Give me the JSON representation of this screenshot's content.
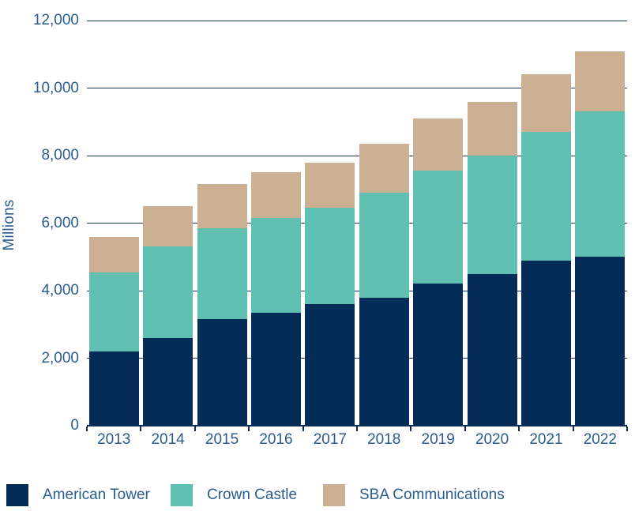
{
  "chart_data": {
    "type": "bar",
    "stacked": true,
    "title": "",
    "ylabel": "Millions",
    "xlabel": "",
    "ylim": [
      0,
      12000
    ],
    "grid": true,
    "legend_position": "bottom",
    "yticks": [
      0,
      2000,
      4000,
      6000,
      8000,
      10000,
      12000
    ],
    "ytick_labels": [
      "0",
      "2,000",
      "4,000",
      "6,000",
      "8,000",
      "10,000",
      "12,000"
    ],
    "categories": [
      "2013",
      "2014",
      "2015",
      "2016",
      "2017",
      "2018",
      "2019",
      "2020",
      "2021",
      "2022"
    ],
    "series": [
      {
        "name": "American Tower",
        "color": "#052b57",
        "values": [
          2200,
          2600,
          3150,
          3350,
          3600,
          3800,
          4200,
          4500,
          4900,
          5000
        ]
      },
      {
        "name": "Crown Castle",
        "color": "#5fc0b2",
        "values": [
          2350,
          2700,
          2700,
          2800,
          2850,
          3100,
          3350,
          3500,
          3800,
          4300
        ]
      },
      {
        "name": "SBA Communications",
        "color": "#cbb094",
        "values": [
          1050,
          1200,
          1300,
          1350,
          1350,
          1450,
          1550,
          1600,
          1700,
          1800
        ]
      }
    ],
    "totals": [
      5600,
      6500,
      7150,
      7500,
      7800,
      8350,
      9100,
      9600,
      10400,
      11100
    ]
  },
  "colors": {
    "gridline": "#17365d",
    "axis": "#0c2d55",
    "tick_text": "#2b5c8e",
    "background": "#ffffff"
  }
}
